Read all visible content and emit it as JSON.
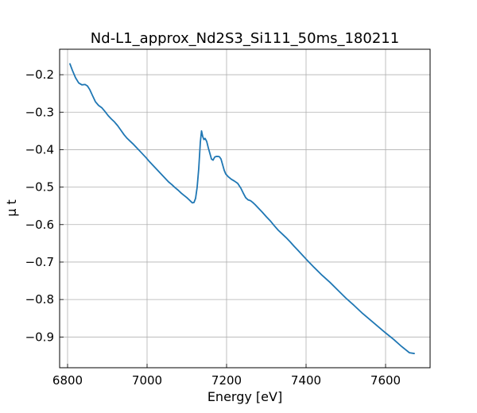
{
  "chart_data": {
    "type": "line",
    "title": "Nd-L1_approx_Nd2S3_Si111_50ms_180211",
    "xlabel": "Energy [eV]",
    "ylabel": "μ t",
    "xlim": [
      6780,
      7712
    ],
    "ylim": [
      -0.982,
      -0.132
    ],
    "grid": true,
    "xticks": [
      6800,
      7000,
      7200,
      7400,
      7600
    ],
    "xtick_labels": [
      "6800",
      "7000",
      "7200",
      "7400",
      "7600"
    ],
    "yticks": [
      -0.2,
      -0.3,
      -0.4,
      -0.5,
      -0.6,
      -0.7,
      -0.8,
      -0.9
    ],
    "ytick_labels": [
      "−0.2",
      "−0.3",
      "−0.4",
      "−0.5",
      "−0.6",
      "−0.7",
      "−0.8",
      "−0.9"
    ],
    "series": [
      {
        "color": "#1f77b4",
        "x": [
          6806,
          6812,
          6820,
          6828,
          6836,
          6844,
          6850,
          6856,
          6862,
          6870,
          6878,
          6886,
          6894,
          6902,
          6910,
          6918,
          6926,
          6934,
          6942,
          6950,
          6958,
          6966,
          6974,
          6982,
          6990,
          6998,
          7006,
          7014,
          7022,
          7030,
          7038,
          7046,
          7054,
          7062,
          7070,
          7078,
          7086,
          7094,
          7100,
          7106,
          7110,
          7114,
          7118,
          7122,
          7126,
          7130,
          7134,
          7137,
          7140,
          7143,
          7146,
          7150,
          7154,
          7158,
          7162,
          7166,
          7170,
          7174,
          7178,
          7182,
          7186,
          7190,
          7194,
          7198,
          7204,
          7212,
          7220,
          7228,
          7236,
          7242,
          7248,
          7254,
          7260,
          7266,
          7272,
          7280,
          7290,
          7300,
          7310,
          7320,
          7330,
          7340,
          7350,
          7360,
          7370,
          7380,
          7400,
          7420,
          7440,
          7460,
          7480,
          7500,
          7520,
          7540,
          7560,
          7580,
          7600,
          7620,
          7640,
          7660,
          7672
        ],
        "y": [
          -0.171,
          -0.188,
          -0.208,
          -0.222,
          -0.227,
          -0.226,
          -0.23,
          -0.24,
          -0.254,
          -0.272,
          -0.282,
          -0.288,
          -0.298,
          -0.309,
          -0.318,
          -0.326,
          -0.336,
          -0.348,
          -0.36,
          -0.37,
          -0.378,
          -0.386,
          -0.395,
          -0.404,
          -0.413,
          -0.422,
          -0.432,
          -0.441,
          -0.45,
          -0.459,
          -0.468,
          -0.477,
          -0.486,
          -0.493,
          -0.501,
          -0.508,
          -0.516,
          -0.523,
          -0.528,
          -0.534,
          -0.538,
          -0.542,
          -0.541,
          -0.53,
          -0.5,
          -0.45,
          -0.38,
          -0.35,
          -0.365,
          -0.373,
          -0.37,
          -0.378,
          -0.395,
          -0.41,
          -0.425,
          -0.428,
          -0.42,
          -0.418,
          -0.418,
          -0.419,
          -0.425,
          -0.44,
          -0.455,
          -0.465,
          -0.472,
          -0.479,
          -0.484,
          -0.49,
          -0.503,
          -0.516,
          -0.528,
          -0.534,
          -0.536,
          -0.541,
          -0.547,
          -0.556,
          -0.567,
          -0.579,
          -0.59,
          -0.603,
          -0.615,
          -0.625,
          -0.635,
          -0.646,
          -0.658,
          -0.669,
          -0.692,
          -0.714,
          -0.735,
          -0.754,
          -0.775,
          -0.796,
          -0.815,
          -0.835,
          -0.853,
          -0.871,
          -0.889,
          -0.906,
          -0.925,
          -0.942,
          -0.944
        ]
      }
    ]
  }
}
